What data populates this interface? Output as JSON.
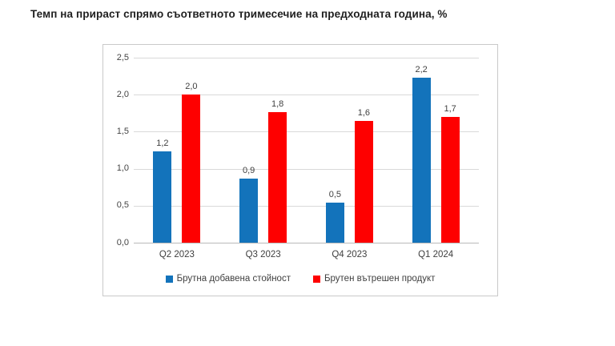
{
  "page": {
    "background": "#ffffff"
  },
  "chart_data": {
    "type": "bar",
    "title": "Темп на прираст спрямо съответното тримесечие на предходната година, %",
    "categories": [
      "Q2 2023",
      "Q3 2023",
      "Q4 2023",
      "Q1 2024"
    ],
    "series": [
      {
        "name": "Брутна добавена стойност",
        "color": "#1373BB",
        "values": [
          1.23,
          0.87,
          0.54,
          2.23
        ],
        "labels": [
          "1,2",
          "0,9",
          "0,5",
          "2,2"
        ]
      },
      {
        "name": "Брутен вътрешен продукт",
        "color": "#FE0000",
        "values": [
          2.0,
          1.76,
          1.64,
          1.7
        ],
        "labels": [
          "2,0",
          "1,8",
          "1,6",
          "1,7"
        ]
      }
    ],
    "xlabel": "",
    "ylabel": "",
    "ylim": [
      0,
      2.5
    ],
    "yticks": [
      {
        "value": 0,
        "label": "0,0"
      },
      {
        "value": 0.5,
        "label": "0,5"
      },
      {
        "value": 1,
        "label": "1,0"
      },
      {
        "value": 1.5,
        "label": "1,5"
      },
      {
        "value": 2,
        "label": "2,0"
      },
      {
        "value": 2.5,
        "label": "2,5"
      }
    ],
    "grid": true,
    "legend_position": "bottom",
    "colors": {
      "gridline": "#d9d9d9",
      "axis_line": "#b9b9b9",
      "frame_border": "#c9c9c9",
      "tick_text": "#444444",
      "label_text": "#404040",
      "title_text": "#1f1f1f"
    }
  }
}
